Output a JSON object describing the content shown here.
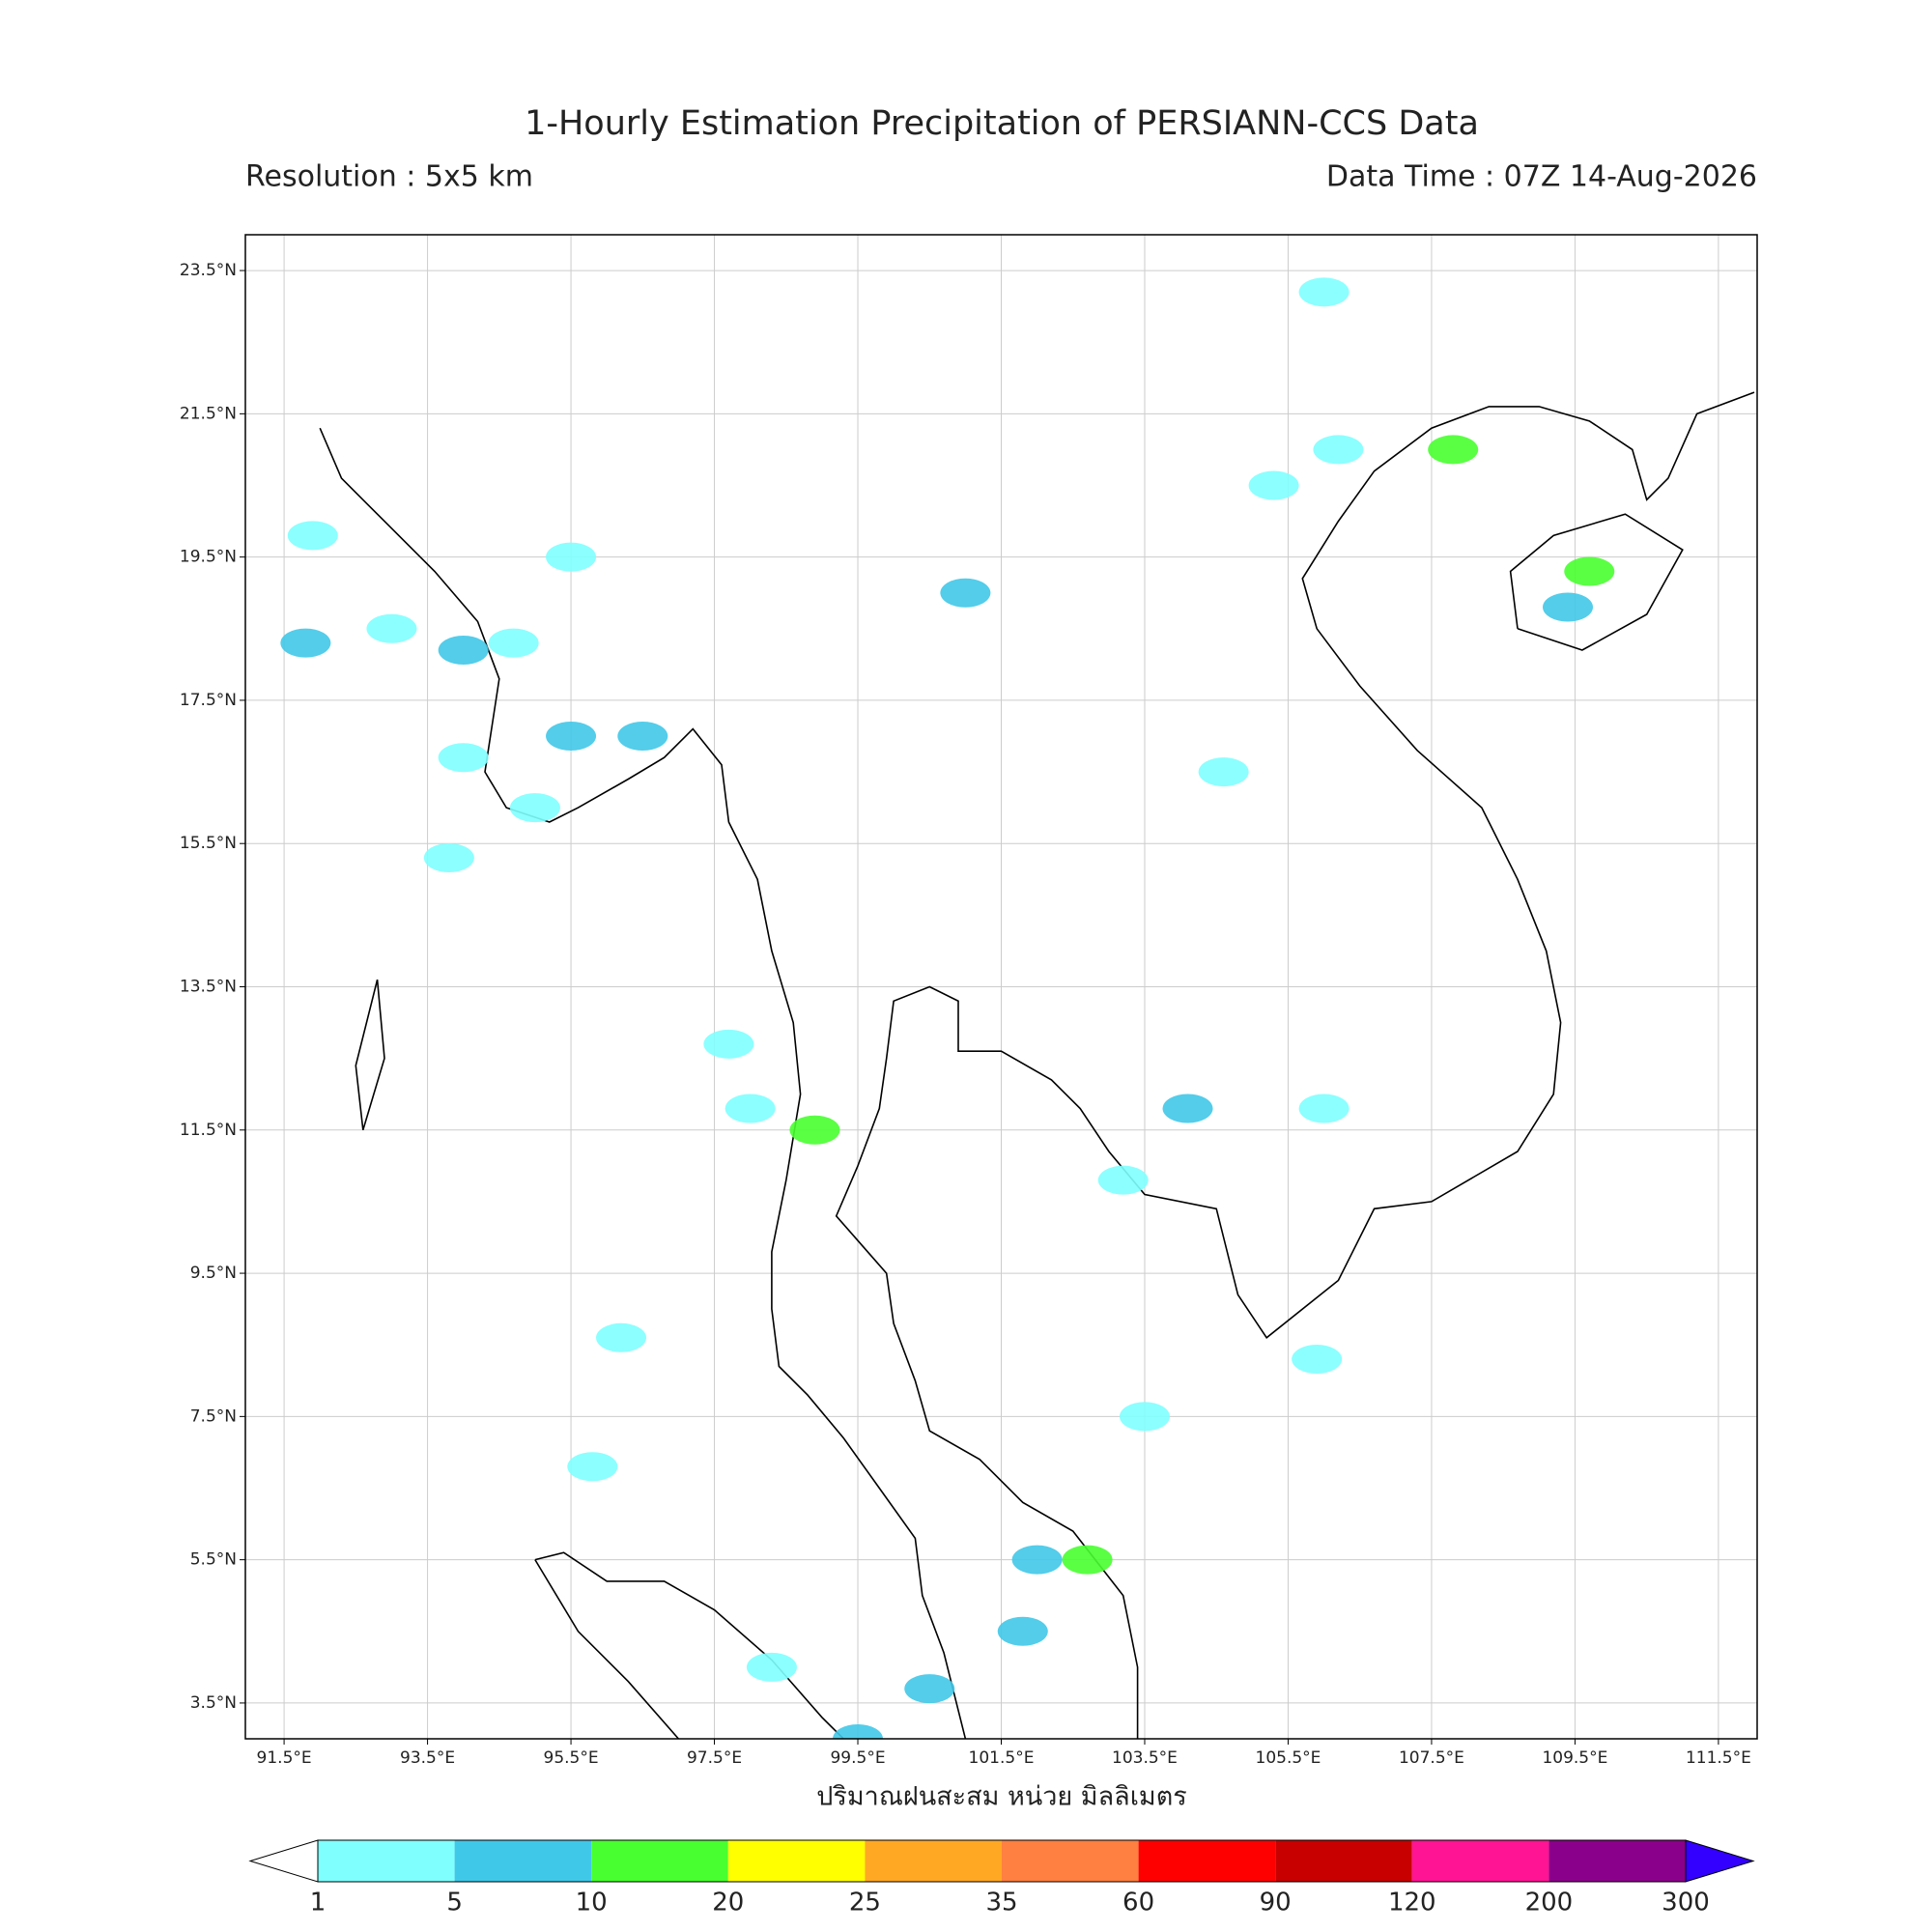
{
  "header": {
    "title": "1-Hourly Estimation Precipitation of PERSIANN-CCS Data",
    "resolution": "Resolution : 5x5 km",
    "data_time": "Data Time : 07Z 14-Aug-2026"
  },
  "map": {
    "xlim": [
      90.96,
      112.04
    ],
    "ylim": [
      3.0,
      24.0
    ],
    "grid": true,
    "x_label": "ปริมาณฝนสะสม หน่วย มิลลิเมตร",
    "xticks": [
      {
        "value": 91.5,
        "label": "91.5°E"
      },
      {
        "value": 93.5,
        "label": "93.5°E"
      },
      {
        "value": 95.5,
        "label": "95.5°E"
      },
      {
        "value": 97.5,
        "label": "97.5°E"
      },
      {
        "value": 99.5,
        "label": "99.5°E"
      },
      {
        "value": 101.5,
        "label": "101.5°E"
      },
      {
        "value": 103.5,
        "label": "103.5°E"
      },
      {
        "value": 105.5,
        "label": "105.5°E"
      },
      {
        "value": 107.5,
        "label": "107.5°E"
      },
      {
        "value": 109.5,
        "label": "109.5°E"
      },
      {
        "value": 111.5,
        "label": "111.5°E"
      }
    ],
    "yticks": [
      {
        "value": 3.5,
        "label": "3.5°N"
      },
      {
        "value": 5.5,
        "label": "5.5°N"
      },
      {
        "value": 7.5,
        "label": "7.5°N"
      },
      {
        "value": 9.5,
        "label": "9.5°N"
      },
      {
        "value": 11.5,
        "label": "11.5°N"
      },
      {
        "value": 13.5,
        "label": "13.5°N"
      },
      {
        "value": 15.5,
        "label": "15.5°N"
      },
      {
        "value": 17.5,
        "label": "17.5°N"
      },
      {
        "value": 19.5,
        "label": "19.5°N"
      },
      {
        "value": 21.5,
        "label": "21.5°N"
      },
      {
        "value": 23.5,
        "label": "23.5°N"
      }
    ]
  },
  "colorbar": {
    "bounds": [
      1,
      5,
      10,
      20,
      25,
      35,
      60,
      90,
      120,
      200,
      300
    ],
    "colors": [
      "#80ffff",
      "#40c8e8",
      "#48ff30",
      "#ffff00",
      "#ffa824",
      "#ff8040",
      "#ff0000",
      "#c80000",
      "#ff1493",
      "#8b008b"
    ],
    "under_color": "#ffffff",
    "over_color": "#3300ff"
  },
  "rain": {
    "cells": [
      {
        "lon": 91.8,
        "lat": 18.3,
        "mm": 6
      },
      {
        "lon": 91.9,
        "lat": 19.8,
        "mm": 2
      },
      {
        "lon": 93.0,
        "lat": 18.5,
        "mm": 3
      },
      {
        "lon": 94.0,
        "lat": 18.2,
        "mm": 7
      },
      {
        "lon": 94.7,
        "lat": 18.3,
        "mm": 4
      },
      {
        "lon": 95.5,
        "lat": 17.0,
        "mm": 6
      },
      {
        "lon": 94.0,
        "lat": 16.7,
        "mm": 4
      },
      {
        "lon": 96.5,
        "lat": 17.0,
        "mm": 8
      },
      {
        "lon": 93.8,
        "lat": 15.3,
        "mm": 3
      },
      {
        "lon": 95.5,
        "lat": 19.5,
        "mm": 2
      },
      {
        "lon": 95.0,
        "lat": 16.0,
        "mm": 3
      },
      {
        "lon": 106.2,
        "lat": 21.0,
        "mm": 3
      },
      {
        "lon": 105.3,
        "lat": 20.5,
        "mm": 3
      },
      {
        "lon": 107.8,
        "lat": 21.0,
        "mm": 12
      },
      {
        "lon": 109.7,
        "lat": 19.3,
        "mm": 15
      },
      {
        "lon": 109.4,
        "lat": 18.8,
        "mm": 5
      },
      {
        "lon": 106.0,
        "lat": 23.2,
        "mm": 2
      },
      {
        "lon": 101.0,
        "lat": 19.0,
        "mm": 6
      },
      {
        "lon": 104.6,
        "lat": 16.5,
        "mm": 3
      },
      {
        "lon": 97.7,
        "lat": 12.7,
        "mm": 2
      },
      {
        "lon": 98.9,
        "lat": 11.5,
        "mm": 12
      },
      {
        "lon": 98.0,
        "lat": 11.8,
        "mm": 2
      },
      {
        "lon": 104.1,
        "lat": 11.8,
        "mm": 9
      },
      {
        "lon": 103.2,
        "lat": 10.8,
        "mm": 2
      },
      {
        "lon": 106.0,
        "lat": 11.8,
        "mm": 4
      },
      {
        "lon": 102.0,
        "lat": 5.5,
        "mm": 6
      },
      {
        "lon": 102.7,
        "lat": 5.5,
        "mm": 14
      },
      {
        "lon": 101.8,
        "lat": 4.5,
        "mm": 7
      },
      {
        "lon": 100.5,
        "lat": 3.7,
        "mm": 5
      },
      {
        "lon": 99.5,
        "lat": 3.0,
        "mm": 6
      },
      {
        "lon": 98.3,
        "lat": 4.0,
        "mm": 2
      },
      {
        "lon": 95.8,
        "lat": 6.8,
        "mm": 3
      },
      {
        "lon": 96.2,
        "lat": 8.6,
        "mm": 2
      },
      {
        "lon": 105.9,
        "lat": 8.3,
        "mm": 2
      },
      {
        "lon": 103.5,
        "lat": 7.5,
        "mm": 2
      }
    ]
  }
}
